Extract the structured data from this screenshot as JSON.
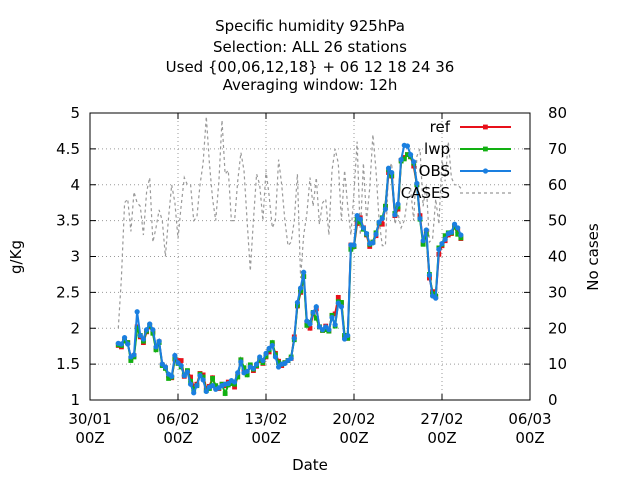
{
  "chart_data": {
    "type": "line",
    "title_lines": [
      "Specific humidity 925hPa",
      "Selection: ALL      26 stations",
      "Used {00,06,12,18} + 06 12 18 24 36",
      "Averaging window: 12h"
    ],
    "xlabel": "Date",
    "ylabel": "g/Kg",
    "y2label": "No cases",
    "xlim_days": [
      0,
      35
    ],
    "ylim": [
      1,
      5
    ],
    "y2lim": [
      0,
      80
    ],
    "x_tick_labels": [
      {
        "line1": "30/01",
        "line2": "00Z"
      },
      {
        "line1": "06/02",
        "line2": "00Z"
      },
      {
        "line1": "13/02",
        "line2": "00Z"
      },
      {
        "line1": "20/02",
        "line2": "00Z"
      },
      {
        "line1": "27/02",
        "line2": "00Z"
      },
      {
        "line1": "06/03",
        "line2": "00Z"
      }
    ],
    "y_ticks": [
      "1",
      "1.5",
      "2",
      "2.5",
      "3",
      "3.5",
      "4",
      "4.5",
      "5"
    ],
    "y2_ticks": [
      "0",
      "10",
      "20",
      "30",
      "40",
      "50",
      "60",
      "70",
      "80"
    ],
    "grid": true,
    "legend_position": "top-right",
    "time_step_days": 0.25,
    "x_start_days": 2.25,
    "series": [
      {
        "name": "ref",
        "color": "#e8101a",
        "axis": "y",
        "values": [
          1.76,
          1.74,
          1.84,
          1.8,
          1.57,
          1.62,
          2.02,
          1.88,
          1.8,
          1.95,
          2.02,
          1.95,
          1.72,
          1.81,
          1.49,
          1.45,
          1.34,
          1.31,
          1.57,
          1.55,
          1.55,
          1.33,
          1.4,
          1.32,
          1.19,
          1.22,
          1.37,
          1.35,
          1.16,
          1.19,
          1.31,
          1.18,
          1.16,
          1.22,
          1.2,
          1.25,
          1.23,
          1.18,
          1.33,
          1.56,
          1.39,
          1.37,
          1.47,
          1.41,
          1.47,
          1.55,
          1.51,
          1.6,
          1.67,
          1.78,
          1.65,
          1.54,
          1.48,
          1.52,
          1.55,
          1.58,
          1.88,
          2.31,
          2.5,
          2.72,
          2.08,
          2.0,
          2.2,
          2.27,
          2.02,
          1.97,
          2.03,
          1.96,
          2.18,
          2.2,
          2.43,
          2.35,
          1.88,
          1.86,
          3.16,
          3.14,
          3.46,
          3.54,
          3.4,
          3.3,
          3.14,
          3.2,
          3.29,
          3.46,
          3.45,
          3.7,
          4.17,
          4.12,
          3.57,
          3.66,
          4.34,
          4.38,
          4.42,
          4.39,
          4.26,
          4.0,
          3.57,
          3.18,
          3.33,
          2.7,
          2.51,
          2.44,
          3.03,
          3.15,
          3.22,
          3.3,
          3.32,
          3.41,
          3.36,
          3.25
        ]
      },
      {
        "name": "lwp",
        "color": "#12b012",
        "axis": "y",
        "values": [
          1.77,
          1.76,
          1.82,
          1.8,
          1.55,
          1.6,
          2.0,
          1.9,
          1.82,
          1.96,
          2.04,
          1.93,
          1.7,
          1.8,
          1.48,
          1.44,
          1.3,
          1.32,
          1.58,
          1.51,
          1.46,
          1.35,
          1.41,
          1.26,
          1.15,
          1.2,
          1.36,
          1.32,
          1.13,
          1.16,
          1.3,
          1.2,
          1.17,
          1.22,
          1.09,
          1.21,
          1.23,
          1.22,
          1.32,
          1.56,
          1.45,
          1.35,
          1.49,
          1.43,
          1.48,
          1.56,
          1.52,
          1.61,
          1.7,
          1.8,
          1.63,
          1.52,
          1.5,
          1.52,
          1.55,
          1.6,
          1.84,
          2.32,
          2.52,
          2.72,
          2.04,
          2.08,
          2.22,
          2.14,
          2.02,
          1.97,
          1.98,
          1.96,
          2.18,
          2.03,
          2.37,
          2.36,
          1.9,
          1.86,
          3.1,
          3.14,
          3.52,
          3.48,
          3.38,
          3.31,
          3.17,
          3.2,
          3.33,
          3.47,
          3.54,
          3.7,
          4.21,
          4.13,
          3.6,
          3.69,
          4.33,
          4.36,
          4.42,
          4.39,
          4.3,
          4.0,
          3.52,
          3.17,
          3.31,
          2.75,
          2.48,
          2.45,
          3.12,
          3.17,
          3.29,
          3.33,
          3.33,
          3.42,
          3.31,
          3.26
        ]
      },
      {
        "name": "OBS",
        "color": "#1a7fe0",
        "axis": "y",
        "values": [
          1.79,
          1.78,
          1.87,
          1.78,
          1.6,
          1.63,
          2.23,
          1.9,
          1.85,
          1.98,
          2.06,
          1.98,
          1.74,
          1.82,
          1.5,
          1.46,
          1.36,
          1.33,
          1.62,
          1.52,
          1.48,
          1.34,
          1.39,
          1.22,
          1.1,
          1.2,
          1.34,
          1.28,
          1.12,
          1.18,
          1.2,
          1.15,
          1.17,
          1.2,
          1.22,
          1.23,
          1.27,
          1.25,
          1.38,
          1.53,
          1.38,
          1.4,
          1.46,
          1.44,
          1.5,
          1.6,
          1.55,
          1.65,
          1.72,
          1.76,
          1.6,
          1.46,
          1.5,
          1.51,
          1.55,
          1.58,
          1.86,
          2.36,
          2.56,
          2.78,
          2.1,
          2.06,
          2.22,
          2.3,
          2.02,
          1.98,
          2.02,
          1.98,
          2.15,
          2.05,
          2.35,
          2.3,
          1.85,
          1.9,
          3.16,
          3.16,
          3.57,
          3.52,
          3.4,
          3.32,
          3.18,
          3.19,
          3.31,
          3.48,
          3.53,
          3.66,
          4.23,
          4.17,
          3.58,
          3.73,
          4.35,
          4.55,
          4.54,
          4.42,
          4.32,
          4.02,
          3.53,
          3.22,
          3.37,
          2.74,
          2.45,
          2.42,
          3.1,
          3.18,
          3.24,
          3.32,
          3.34,
          3.45,
          3.4,
          3.3
        ]
      },
      {
        "name": "CASES",
        "color": "#999999",
        "axis": "y2",
        "values": [
          20,
          34,
          55,
          56,
          47,
          58,
          55,
          54,
          46,
          58,
          62,
          44,
          48,
          53,
          50,
          40,
          51,
          60,
          55,
          45,
          54,
          62,
          60,
          60,
          50,
          51,
          60,
          66,
          79,
          66,
          56,
          50,
          61,
          78,
          63,
          64,
          50,
          50,
          61,
          69,
          64,
          50,
          36,
          50,
          63,
          60,
          50,
          64,
          57,
          48,
          50,
          67,
          60,
          50,
          43,
          44,
          50,
          63,
          34,
          46,
          52,
          62,
          54,
          62,
          49,
          55,
          56,
          46,
          64,
          70,
          66,
          50,
          64,
          54,
          46,
          58,
          72,
          46,
          66,
          50,
          59,
          74,
          64,
          50,
          43,
          43,
          64,
          66,
          49,
          52,
          48,
          50,
          56,
          59,
          50,
          68,
          70,
          54,
          60,
          44,
          45,
          56,
          49,
          67,
          61,
          72,
          62,
          60,
          60,
          59
        ]
      }
    ]
  }
}
